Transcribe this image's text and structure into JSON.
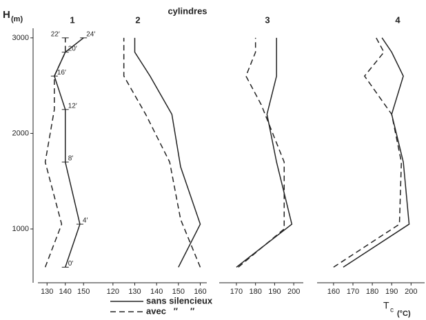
{
  "title": "cylindres",
  "y_label": "H",
  "y_unit": "(m)",
  "x_label": "T",
  "x_label_sub": "c",
  "x_unit": "(°C)",
  "ylim": [
    437,
    3100
  ],
  "yticks": [
    1000,
    2000,
    3000
  ],
  "chart_data": [
    {
      "type": "line",
      "title": "1",
      "xlim": [
        125,
        162
      ],
      "xticks": [
        130,
        140,
        150
      ],
      "series": [
        {
          "name": "sans silencieux",
          "line_style": "solid",
          "color": "#222222",
          "x": [
            140,
            148,
            140,
            140,
            134,
            140,
            150
          ],
          "y": [
            600,
            1050,
            1700,
            2250,
            2600,
            2850,
            3000
          ],
          "point_labels": [
            "0′",
            "4′",
            "8′",
            "12′",
            "16′",
            "20′",
            "24′"
          ]
        },
        {
          "name": "avec   ″     ″",
          "line_style": "dashed",
          "color": "#222222",
          "x": [
            129,
            138,
            129,
            134,
            134,
            140,
            140
          ],
          "y": [
            600,
            1050,
            1700,
            2250,
            2600,
            2850,
            3000
          ],
          "point_labels": [
            null,
            null,
            null,
            null,
            null,
            null,
            "22′"
          ]
        }
      ]
    },
    {
      "type": "line",
      "title": "2",
      "xlim": [
        115,
        163
      ],
      "xticks": [
        120,
        130,
        140,
        150,
        160
      ],
      "series": [
        {
          "line_style": "solid",
          "color": "#222222",
          "x": [
            150,
            160,
            151,
            147,
            137,
            130,
            130
          ],
          "y": [
            600,
            1050,
            1650,
            2200,
            2600,
            2850,
            3000
          ]
        },
        {
          "line_style": "dashed",
          "color": "#222222",
          "x": [
            160,
            151,
            146,
            135,
            125,
            125
          ],
          "y": [
            600,
            1100,
            1700,
            2200,
            2600,
            3000
          ]
        }
      ]
    },
    {
      "type": "line",
      "title": "3",
      "xlim": [
        161,
        205
      ],
      "xticks": [
        170,
        180,
        190,
        200
      ],
      "series": [
        {
          "line_style": "solid",
          "color": "#222222",
          "x": [
            170,
            199,
            191,
            186,
            191,
            191
          ],
          "y": [
            600,
            1050,
            1700,
            2200,
            2600,
            3000
          ]
        },
        {
          "line_style": "dashed",
          "color": "#222222",
          "x": [
            171,
            195,
            195,
            183,
            175,
            180,
            180
          ],
          "y": [
            600,
            1000,
            1700,
            2300,
            2600,
            2850,
            3000
          ]
        }
      ]
    },
    {
      "type": "line",
      "title": "4",
      "xlim": [
        151.5,
        207
      ],
      "xticks": [
        160,
        170,
        180,
        190,
        200
      ],
      "series": [
        {
          "line_style": "solid",
          "color": "#222222",
          "x": [
            165,
            199,
            196,
            190,
            196,
            190,
            185
          ],
          "y": [
            600,
            1050,
            1700,
            2200,
            2600,
            2850,
            3000
          ]
        },
        {
          "line_style": "dashed",
          "color": "#222222",
          "x": [
            160,
            194,
            195,
            190,
            176,
            186,
            182
          ],
          "y": [
            600,
            1050,
            1700,
            2200,
            2600,
            2850,
            3000
          ]
        }
      ]
    }
  ]
}
